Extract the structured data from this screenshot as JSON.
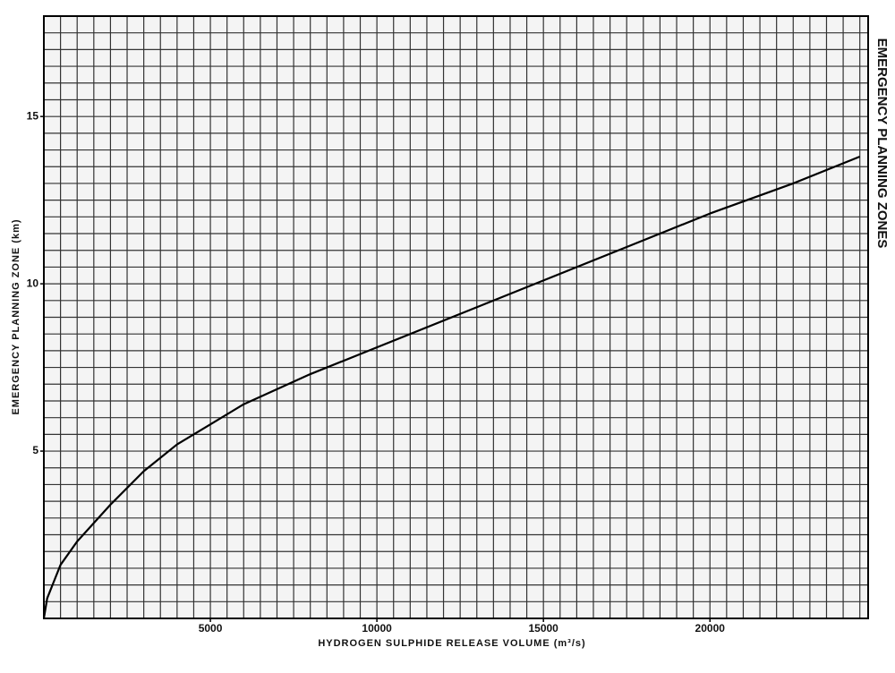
{
  "chart_data": {
    "type": "line",
    "title": "EMERGENCY PLANNING ZONES",
    "x_label": "HYDROGEN SULPHIDE RELEASE VOLUME (m³/s)",
    "y_label": "EMERGENCY PLANNING ZONE (km)",
    "x": [
      0,
      100,
      300,
      500,
      1000,
      2000,
      3000,
      4000,
      5000,
      6000,
      8000,
      10000,
      12500,
      15000,
      17500,
      20000,
      22500,
      24500
    ],
    "values": [
      0,
      0.6,
      1.1,
      1.6,
      2.3,
      3.4,
      4.4,
      5.2,
      5.8,
      6.4,
      7.3,
      8.1,
      9.1,
      10.1,
      11.1,
      12.1,
      13.0,
      13.8
    ],
    "color": "#000000",
    "xlim": [
      0,
      24750
    ],
    "ylim": [
      0,
      18
    ],
    "xticks": [
      5000,
      10000,
      15000,
      20000
    ],
    "yticks": [
      5,
      10,
      15
    ],
    "x_grid_step": 500,
    "y_grid_step": 0.5,
    "grid": true
  }
}
